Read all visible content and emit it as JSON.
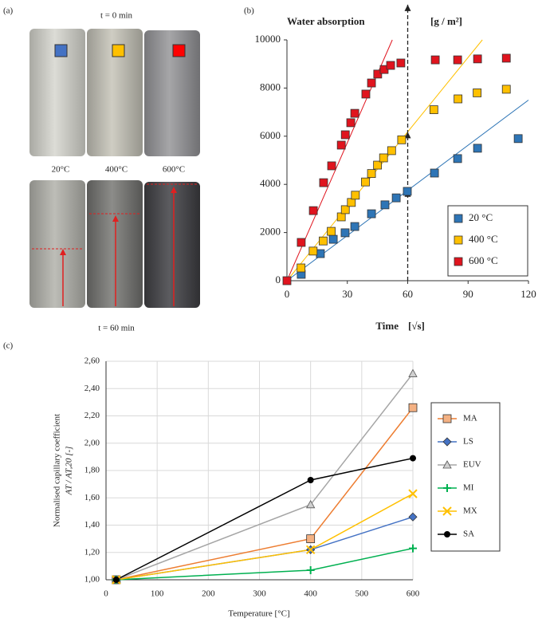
{
  "photo_panel": {
    "panel": "(a)",
    "top_caption": "t = 0 min",
    "labels": [
      "20°C",
      "400°C",
      "600°C"
    ],
    "bottom_caption": "t = 60 min"
  },
  "chart_data": [
    {
      "type": "scatter",
      "panel": "(b)",
      "title": "Water absorption",
      "y_unit": "[g / m²]",
      "x_label": "Time",
      "x_unit": "[√s]",
      "xlim": [
        0,
        120
      ],
      "xticks": [
        0,
        30,
        60,
        90,
        120
      ],
      "ylim": [
        0,
        10000
      ],
      "yticks": [
        0,
        2000,
        4000,
        6000,
        8000,
        10000
      ],
      "reference_x": 60,
      "legend": "bottom-right",
      "series": [
        {
          "name": "20 °C",
          "color": "#2e75b6",
          "trend_slope": 62.5,
          "x": [
            7.1,
            16.6,
            23,
            28.9,
            33.7,
            42,
            48.7,
            54.3,
            59.8,
            73.3,
            84.8,
            94.7,
            114.9
          ],
          "values": [
            265,
            1125,
            1720,
            1990,
            2250,
            2780,
            3150,
            3440,
            3710,
            4470,
            5070,
            5500,
            5900
          ]
        },
        {
          "name": "400 °C",
          "color": "#ffc000",
          "trend_slope": 103,
          "x": [
            7,
            13,
            18,
            22,
            27,
            29,
            32,
            34,
            39,
            42,
            45,
            48,
            52,
            57,
            73,
            85,
            94.5,
            109
          ],
          "values": [
            530,
            1230,
            1650,
            2050,
            2650,
            2950,
            3250,
            3550,
            4100,
            4450,
            4800,
            5100,
            5400,
            5850,
            7100,
            7550,
            7800,
            7950
          ]
        },
        {
          "name": "600 °C",
          "color": "#e0141e",
          "trend_slope": 191,
          "x": [
            0,
            7.1,
            13.1,
            18.2,
            22.2,
            27,
            29,
            31.7,
            33.7,
            39.2,
            42,
            45.1,
            48.3,
            51.5,
            56.6,
            73.7,
            84.8,
            94.7,
            109
          ],
          "values": [
            0,
            1590,
            2910,
            4070,
            4770,
            5630,
            6060,
            6560,
            6950,
            7750,
            8210,
            8580,
            8770,
            8940,
            9040,
            9170,
            9170,
            9210,
            9240
          ]
        }
      ]
    },
    {
      "type": "line",
      "panel": "(c)",
      "y_label": "Normalised capillary coefficient",
      "y_label_2": "AT / AT,20 [-]",
      "x_label": "Temperature [°C]",
      "xlim": [
        0,
        600
      ],
      "xticks": [
        0,
        100,
        200,
        300,
        400,
        500,
        600
      ],
      "ylim": [
        1,
        2.6
      ],
      "yticks": [
        {
          "value": 1,
          "label": "1,00"
        },
        {
          "value": 1.2,
          "label": "1,20"
        },
        {
          "value": 1.4,
          "label": "1,40"
        },
        {
          "value": 1.6,
          "label": "1,60"
        },
        {
          "value": 1.8,
          "label": "1,80"
        },
        {
          "value": 2,
          "label": "2,00"
        },
        {
          "value": 2.2,
          "label": "2,20"
        },
        {
          "value": 2.4,
          "label": "2,40"
        },
        {
          "value": 2.6,
          "label": "2,60"
        }
      ],
      "grid": true,
      "legend": "right",
      "x": [
        20,
        400,
        600
      ],
      "series": [
        {
          "name": "MA",
          "color": "#ed7d31",
          "marker": "square",
          "values": [
            1.0,
            1.3,
            2.26
          ]
        },
        {
          "name": "LS",
          "color": "#4472c4",
          "marker": "diamond",
          "values": [
            1.0,
            1.22,
            1.46
          ]
        },
        {
          "name": "EUV",
          "color": "#a5a5a5",
          "marker": "triangle",
          "values": [
            1.0,
            1.55,
            2.51
          ]
        },
        {
          "name": "MI",
          "color": "#00b050",
          "marker": "plus",
          "values": [
            1.0,
            1.07,
            1.23
          ]
        },
        {
          "name": "MX",
          "color": "#ffc000",
          "marker": "x",
          "values": [
            1.0,
            1.22,
            1.63
          ]
        },
        {
          "name": "SA",
          "color": "#000000",
          "marker": "circle",
          "values": [
            1.0,
            1.73,
            1.89
          ]
        }
      ]
    }
  ]
}
